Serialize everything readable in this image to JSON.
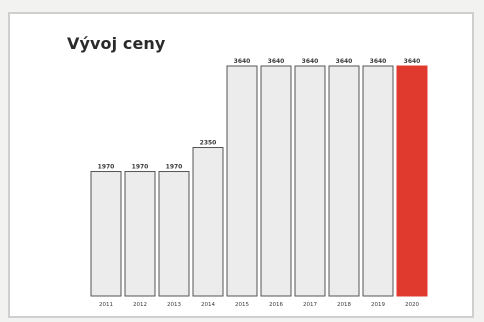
{
  "chart_data": {
    "type": "bar",
    "title": "Vývoj ceny",
    "categories": [
      "2011",
      "2012",
      "2013",
      "2014",
      "2015",
      "2016",
      "2017",
      "2018",
      "2019",
      "2020"
    ],
    "values": [
      1970,
      1970,
      1970,
      2350,
      3640,
      3640,
      3640,
      3640,
      3640,
      3640
    ],
    "value_labels": [
      "1970",
      "1970",
      "1970",
      "2350",
      "3640",
      "3640",
      "3640",
      "3640",
      "3640",
      "3640"
    ],
    "bar_color": "#ececec",
    "bar_border_color": "#555555",
    "highlight_color": "#e03a2f",
    "highlight_index": 9,
    "highlight_label_color": "#f4b4ae",
    "xlabel": "",
    "ylabel": "",
    "ylim": [
      0,
      3640
    ],
    "grid": false
  }
}
